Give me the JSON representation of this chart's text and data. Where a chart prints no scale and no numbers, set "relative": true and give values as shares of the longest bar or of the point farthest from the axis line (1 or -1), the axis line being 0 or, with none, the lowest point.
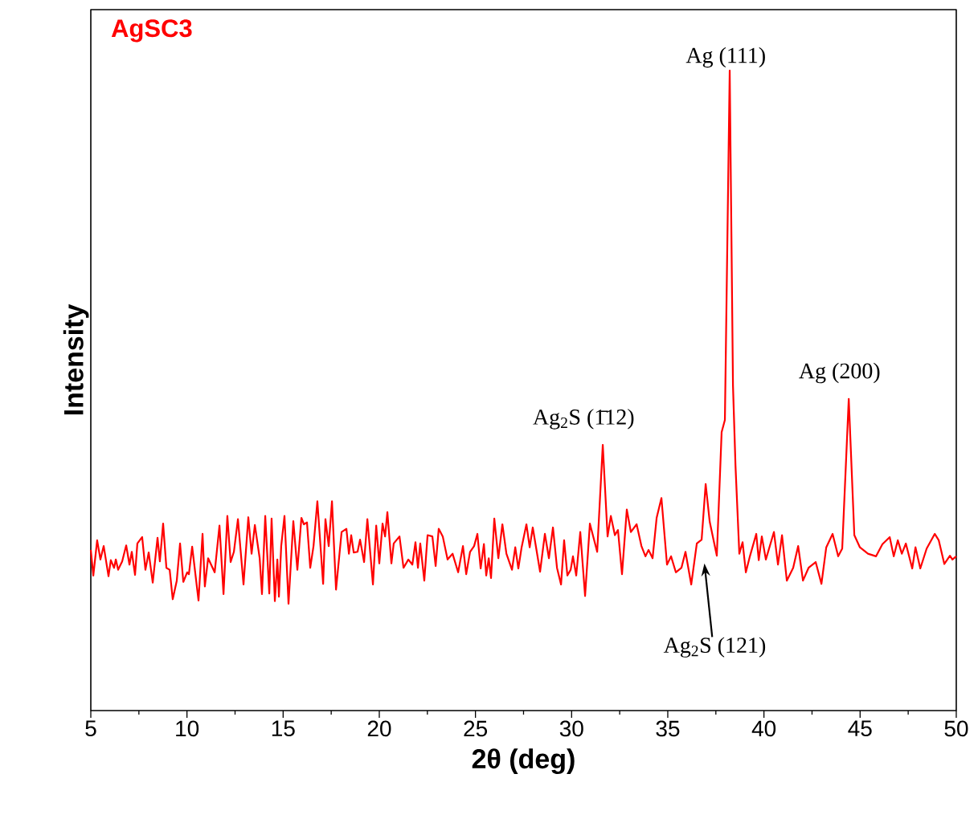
{
  "chart_data": {
    "type": "line",
    "relative": true,
    "xlabel": "2θ (deg)",
    "ylabel": "Intensity",
    "xlim": [
      5,
      50
    ],
    "xticks": [
      5,
      10,
      15,
      20,
      25,
      30,
      35,
      40,
      45,
      50
    ],
    "grid": false,
    "legend": false,
    "annotations": [
      {
        "text": "Ag$_{2}$S (1̄12)",
        "x": 31.62,
        "y": 0.415
      },
      {
        "text": "Ag (111)",
        "x": 38.22,
        "y": 1.0
      },
      {
        "text": "Ag (200)",
        "x": 44.41,
        "y": 0.487
      },
      "Ag$_{2}$S (121)"
    ],
    "series": [
      {
        "name": "AgSC3",
        "color": "#ff0000",
        "x": [
          5.0,
          5.13,
          5.33,
          5.5,
          5.67,
          5.92,
          6.04,
          6.21,
          6.3,
          6.42,
          6.63,
          6.84,
          7.01,
          7.13,
          7.3,
          7.42,
          7.67,
          7.84,
          8.01,
          8.22,
          8.47,
          8.59,
          8.76,
          8.93,
          9.1,
          9.26,
          9.47,
          9.64,
          9.81,
          10.01,
          10.1,
          10.27,
          10.6,
          10.81,
          10.93,
          11.1,
          11.44,
          11.69,
          11.9,
          12.1,
          12.27,
          12.44,
          12.65,
          12.94,
          13.19,
          13.36,
          13.53,
          13.78,
          13.9,
          14.07,
          14.28,
          14.4,
          14.57,
          14.7,
          14.78,
          14.9,
          15.07,
          15.28,
          15.53,
          15.74,
          15.95,
          16.08,
          16.24,
          16.41,
          16.58,
          16.78,
          17.08,
          17.2,
          17.37,
          17.54,
          17.75,
          18.04,
          18.29,
          18.42,
          18.54,
          18.67,
          18.87,
          19.0,
          19.21,
          19.38,
          19.67,
          19.84,
          20.0,
          20.17,
          20.3,
          20.42,
          20.63,
          20.75,
          21.05,
          21.26,
          21.51,
          21.72,
          21.88,
          22.01,
          22.13,
          22.34,
          22.51,
          22.76,
          22.93,
          23.09,
          23.3,
          23.55,
          23.81,
          24.1,
          24.35,
          24.52,
          24.72,
          24.93,
          25.1,
          25.27,
          25.44,
          25.56,
          25.69,
          25.81,
          25.98,
          26.19,
          26.4,
          26.61,
          26.9,
          27.07,
          27.23,
          27.4,
          27.65,
          27.82,
          27.98,
          28.36,
          28.61,
          28.82,
          29.03,
          29.24,
          29.45,
          29.61,
          29.78,
          29.95,
          30.07,
          30.24,
          30.45,
          30.7,
          30.95,
          31.33,
          31.62,
          31.87,
          32.04,
          32.25,
          32.41,
          32.62,
          32.87,
          33.08,
          33.38,
          33.63,
          33.84,
          34.0,
          34.21,
          34.42,
          34.67,
          34.96,
          35.17,
          35.42,
          35.71,
          35.92,
          36.22,
          36.51,
          36.76,
          36.97,
          37.18,
          37.55,
          37.8,
          37.97,
          38.22,
          38.39,
          38.52,
          38.72,
          38.89,
          39.06,
          39.27,
          39.6,
          39.73,
          39.89,
          40.1,
          40.52,
          40.73,
          40.94,
          41.19,
          41.52,
          41.78,
          42.03,
          42.32,
          42.69,
          42.99,
          43.24,
          43.57,
          43.86,
          44.07,
          44.41,
          44.7,
          44.99,
          45.41,
          45.83,
          46.16,
          46.54,
          46.75,
          46.96,
          47.17,
          47.38,
          47.71,
          47.88,
          48.13,
          48.46,
          48.88,
          49.09,
          49.38,
          49.67,
          49.8,
          50.0
        ],
        "values": [
          0.251,
          0.211,
          0.266,
          0.236,
          0.257,
          0.21,
          0.235,
          0.223,
          0.236,
          0.22,
          0.233,
          0.258,
          0.228,
          0.248,
          0.212,
          0.261,
          0.271,
          0.22,
          0.247,
          0.2,
          0.27,
          0.233,
          0.292,
          0.223,
          0.22,
          0.174,
          0.203,
          0.261,
          0.201,
          0.216,
          0.213,
          0.256,
          0.172,
          0.276,
          0.194,
          0.238,
          0.216,
          0.289,
          0.182,
          0.304,
          0.232,
          0.248,
          0.299,
          0.197,
          0.302,
          0.245,
          0.29,
          0.238,
          0.182,
          0.304,
          0.183,
          0.3,
          0.171,
          0.236,
          0.178,
          0.257,
          0.304,
          0.167,
          0.296,
          0.22,
          0.301,
          0.291,
          0.294,
          0.223,
          0.257,
          0.327,
          0.198,
          0.299,
          0.257,
          0.327,
          0.189,
          0.279,
          0.284,
          0.245,
          0.274,
          0.247,
          0.248,
          0.267,
          0.232,
          0.299,
          0.197,
          0.289,
          0.23,
          0.292,
          0.272,
          0.31,
          0.23,
          0.261,
          0.272,
          0.223,
          0.236,
          0.228,
          0.263,
          0.223,
          0.261,
          0.203,
          0.274,
          0.272,
          0.226,
          0.284,
          0.272,
          0.236,
          0.245,
          0.216,
          0.257,
          0.213,
          0.248,
          0.257,
          0.276,
          0.222,
          0.26,
          0.211,
          0.238,
          0.207,
          0.3,
          0.238,
          0.291,
          0.245,
          0.22,
          0.255,
          0.222,
          0.255,
          0.291,
          0.255,
          0.286,
          0.217,
          0.276,
          0.238,
          0.286,
          0.223,
          0.197,
          0.266,
          0.211,
          0.22,
          0.241,
          0.211,
          0.279,
          0.179,
          0.292,
          0.248,
          0.415,
          0.272,
          0.304,
          0.274,
          0.282,
          0.213,
          0.314,
          0.279,
          0.291,
          0.257,
          0.241,
          0.251,
          0.238,
          0.301,
          0.332,
          0.228,
          0.241,
          0.216,
          0.223,
          0.248,
          0.197,
          0.261,
          0.267,
          0.354,
          0.295,
          0.242,
          0.435,
          0.454,
          1.0,
          0.508,
          0.383,
          0.245,
          0.263,
          0.216,
          0.241,
          0.276,
          0.235,
          0.272,
          0.236,
          0.279,
          0.228,
          0.274,
          0.203,
          0.223,
          0.257,
          0.203,
          0.223,
          0.232,
          0.198,
          0.255,
          0.276,
          0.241,
          0.253,
          0.487,
          0.274,
          0.255,
          0.245,
          0.241,
          0.26,
          0.271,
          0.241,
          0.266,
          0.245,
          0.261,
          0.222,
          0.255,
          0.222,
          0.253,
          0.276,
          0.266,
          0.229,
          0.242,
          0.236,
          0.241
        ]
      }
    ]
  }
}
